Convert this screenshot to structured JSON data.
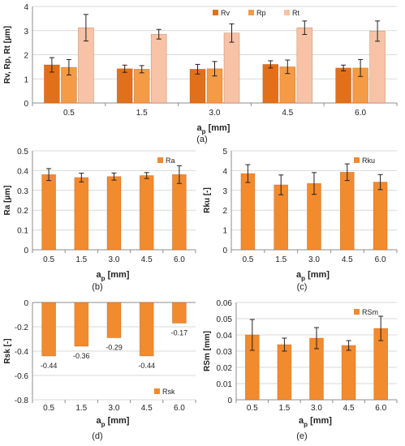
{
  "colors": {
    "Rv": "#e2701b",
    "Rp": "#f59a45",
    "Rt": "#f7c2a6",
    "single": "#f28a2e",
    "grid": "#d9d9d9",
    "axis": "#8c8c8c",
    "errorbar": "#222222"
  },
  "chart_data": [
    {
      "id": "a",
      "type": "bar",
      "caption": "(a)",
      "ylabel": "Rv, Rp, Rt [µm]",
      "xlabel_main": "a",
      "xlabel_sub": "p",
      "xlabel_unit": " [mm]",
      "categories": [
        "0.5",
        "1.5",
        "3.0",
        "4.5",
        "6.0"
      ],
      "ylim": [
        0,
        4
      ],
      "yticks": [
        "0",
        "1",
        "2",
        "3",
        "4"
      ],
      "grid": true,
      "legend": "top-right",
      "series": [
        {
          "name": "Rv",
          "values": [
            1.58,
            1.42,
            1.4,
            1.6,
            1.45
          ],
          "errors": [
            0.3,
            0.15,
            0.2,
            0.15,
            0.12
          ]
        },
        {
          "name": "Rp",
          "values": [
            1.48,
            1.4,
            1.42,
            1.5,
            1.45
          ],
          "errors": [
            0.32,
            0.15,
            0.3,
            0.28,
            0.35
          ]
        },
        {
          "name": "Rt",
          "values": [
            3.12,
            2.85,
            2.9,
            3.12,
            2.98
          ],
          "errors": [
            0.55,
            0.2,
            0.38,
            0.28,
            0.42
          ]
        }
      ]
    },
    {
      "id": "b",
      "type": "bar",
      "caption": "(b)",
      "ylabel": "Ra [µm]",
      "xlabel_main": "a",
      "xlabel_sub": "p",
      "xlabel_unit": " [mm]",
      "categories": [
        "0.5",
        "1.5",
        "3.0",
        "4.5",
        "6.0"
      ],
      "ylim": [
        0,
        0.5
      ],
      "yticks": [
        "0",
        "0.1",
        "0.2",
        "0.3",
        "0.4",
        "0.5"
      ],
      "grid": true,
      "legend": "top-right",
      "series": [
        {
          "name": "Ra",
          "values": [
            0.38,
            0.365,
            0.37,
            0.375,
            0.38
          ],
          "errors": [
            0.03,
            0.022,
            0.018,
            0.015,
            0.045
          ]
        }
      ]
    },
    {
      "id": "c",
      "type": "bar",
      "caption": "(c)",
      "ylabel": "Rku [-]",
      "xlabel_main": "a",
      "xlabel_sub": "p",
      "xlabel_unit": " [mm]",
      "categories": [
        "0.5",
        "1.5",
        "3.0",
        "4.5",
        "6.0"
      ],
      "ylim": [
        0,
        5
      ],
      "yticks": [
        "0",
        "1",
        "2",
        "3",
        "4",
        "5"
      ],
      "grid": true,
      "legend": "top-right",
      "series": [
        {
          "name": "Rku",
          "values": [
            3.85,
            3.28,
            3.35,
            3.92,
            3.42
          ],
          "errors": [
            0.45,
            0.5,
            0.55,
            0.42,
            0.38
          ]
        }
      ]
    },
    {
      "id": "d",
      "type": "bar",
      "caption": "(d)",
      "ylabel": "Rsk [-]",
      "xlabel_main": "a",
      "xlabel_sub": "p",
      "xlabel_unit": " [mm]",
      "categories": [
        "0.5",
        "1.5",
        "3.0",
        "4.5",
        "6.0"
      ],
      "ylim": [
        -0.8,
        0
      ],
      "yticks": [
        "-0.8",
        "-0.6",
        "-0.4",
        "-0.2",
        "0"
      ],
      "grid": true,
      "legend": "bottom-right",
      "series": [
        {
          "name": "Rsk",
          "values": [
            -0.44,
            -0.36,
            -0.29,
            -0.44,
            -0.17
          ],
          "labels": [
            "-0.44",
            "-0.36",
            "-0.29",
            "-0.44",
            "-0.17"
          ]
        }
      ]
    },
    {
      "id": "e",
      "type": "bar",
      "caption": "(e)",
      "ylabel": "RSm [mm]",
      "xlabel_main": "a",
      "xlabel_sub": "p",
      "xlabel_unit": " [mm]",
      "categories": [
        "0.5",
        "1.5",
        "3.0",
        "4.5",
        "6.0"
      ],
      "ylim": [
        0,
        0.06
      ],
      "yticks": [
        "0",
        "0.01",
        "0.02",
        "0.03",
        "0.04",
        "0.05",
        "0.06"
      ],
      "grid": true,
      "legend": "top-right",
      "series": [
        {
          "name": "RSm",
          "values": [
            0.04,
            0.034,
            0.038,
            0.0335,
            0.044
          ],
          "errors": [
            0.0095,
            0.004,
            0.0065,
            0.003,
            0.0075
          ]
        }
      ]
    }
  ]
}
